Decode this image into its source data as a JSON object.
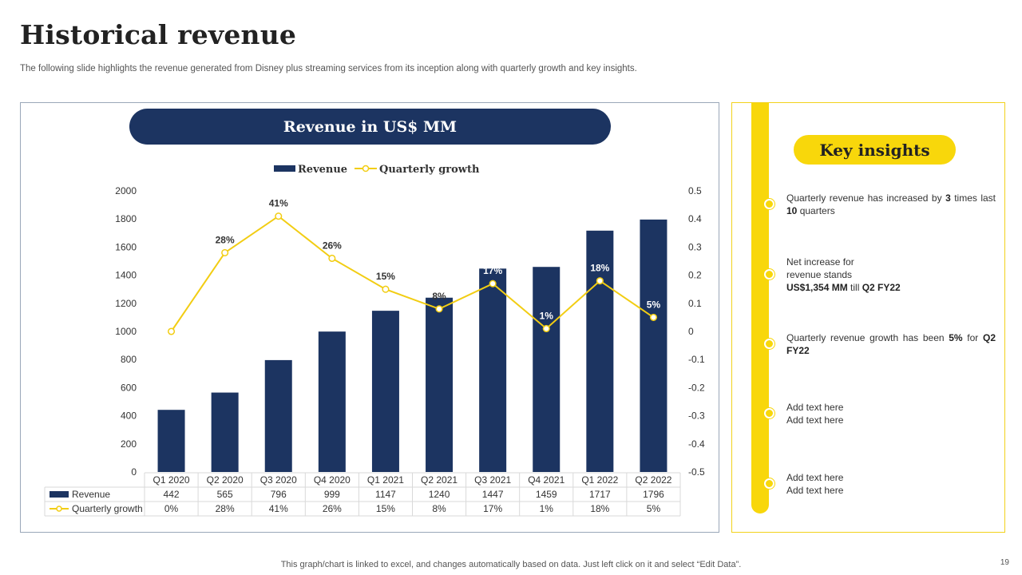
{
  "page": {
    "title": "Historical revenue",
    "subtitle": "The following slide highlights the revenue generated from Disney plus streaming services from its inception along with quarterly growth and key insights.",
    "footer_note": "This graph/chart is linked to excel,  and changes automatically based on data. Just left click on it and select “Edit Data”.",
    "page_number": "19"
  },
  "chart_panel": {
    "banner": "Revenue in US$ MM"
  },
  "chart_data": {
    "type": "bar",
    "title": "Revenue in US$ MM",
    "categories": [
      "Q1 2020",
      "Q2 2020",
      "Q3 2020",
      "Q4 2020",
      "Q1 2021",
      "Q2 2021",
      "Q3 2021",
      "Q4 2021",
      "Q1 2022",
      "Q2 2022"
    ],
    "series": [
      {
        "name": "Revenue",
        "type": "bar",
        "axis": "left",
        "color": "#1c3461",
        "values": [
          442,
          565,
          796,
          999,
          1147,
          1240,
          1447,
          1459,
          1717,
          1796
        ],
        "table_labels": [
          "442",
          "565",
          "796",
          "999",
          "1147",
          "1240",
          "1447",
          "1459",
          "1717",
          "1796"
        ]
      },
      {
        "name": "Quarterly growth",
        "type": "line",
        "axis": "right",
        "color": "#f2cd13",
        "values": [
          0,
          0.28,
          0.41,
          0.26,
          0.15,
          0.08,
          0.17,
          0.01,
          0.18,
          0.05
        ],
        "data_labels": [
          "",
          "28%",
          "41%",
          "26%",
          "15%",
          "8%",
          "17%",
          "1%",
          "18%",
          "5%"
        ],
        "table_labels": [
          "0%",
          "28%",
          "41%",
          "26%",
          "15%",
          "8%",
          "17%",
          "1%",
          "18%",
          "5%"
        ]
      }
    ],
    "y_left": {
      "range": [
        0,
        2000
      ],
      "ticks": [
        0,
        200,
        400,
        600,
        800,
        1000,
        1200,
        1400,
        1600,
        1800,
        2000
      ]
    },
    "y_right": {
      "range": [
        -0.5,
        0.5
      ],
      "ticks": [
        "-0.5",
        "-0.4",
        "-0.3",
        "-0.2",
        "-0.1",
        "0",
        "0.1",
        "0.2",
        "0.3",
        "0.4",
        "0.5"
      ]
    },
    "legend_position": "top-center",
    "grid": false,
    "data_table": true
  },
  "insights": {
    "heading": "Key insights",
    "items": [
      {
        "parts": [
          {
            "t": "Quarterly revenue  has increased by "
          },
          {
            "t": "3",
            "b": true
          },
          {
            "t": " times last "
          },
          {
            "t": "10",
            "b": true
          },
          {
            "t": " quarters"
          }
        ]
      },
      {
        "parts": [
          {
            "t": "Net increase for"
          },
          {
            "br": true
          },
          {
            "t": "revenue  stands"
          },
          {
            "br": true
          },
          {
            "t": "US$1,354  MM",
            "b": true
          },
          {
            "t": " till "
          },
          {
            "t": "Q2 FY22",
            "b": true
          }
        ]
      },
      {
        "parts": [
          {
            "t": "Quarterly revenue  growth has been "
          },
          {
            "t": "5%",
            "b": true
          },
          {
            "t": " for "
          },
          {
            "t": "Q2 FY22",
            "b": true
          }
        ]
      },
      {
        "parts": [
          {
            "t": "Add text here"
          },
          {
            "br": true
          },
          {
            "t": "Add text here"
          }
        ]
      },
      {
        "parts": [
          {
            "t": "Add text here"
          },
          {
            "br": true
          },
          {
            "t": "Add text here"
          }
        ]
      }
    ]
  }
}
